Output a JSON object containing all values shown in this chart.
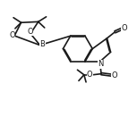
{
  "background_color": "#ffffff",
  "line_color": "#1a1a1a",
  "line_width": 1.2,
  "figsize": [
    1.53,
    1.31
  ],
  "dpi": 100,
  "label_B": "B",
  "label_O": "O",
  "label_N": "N",
  "font_size": 5.5
}
